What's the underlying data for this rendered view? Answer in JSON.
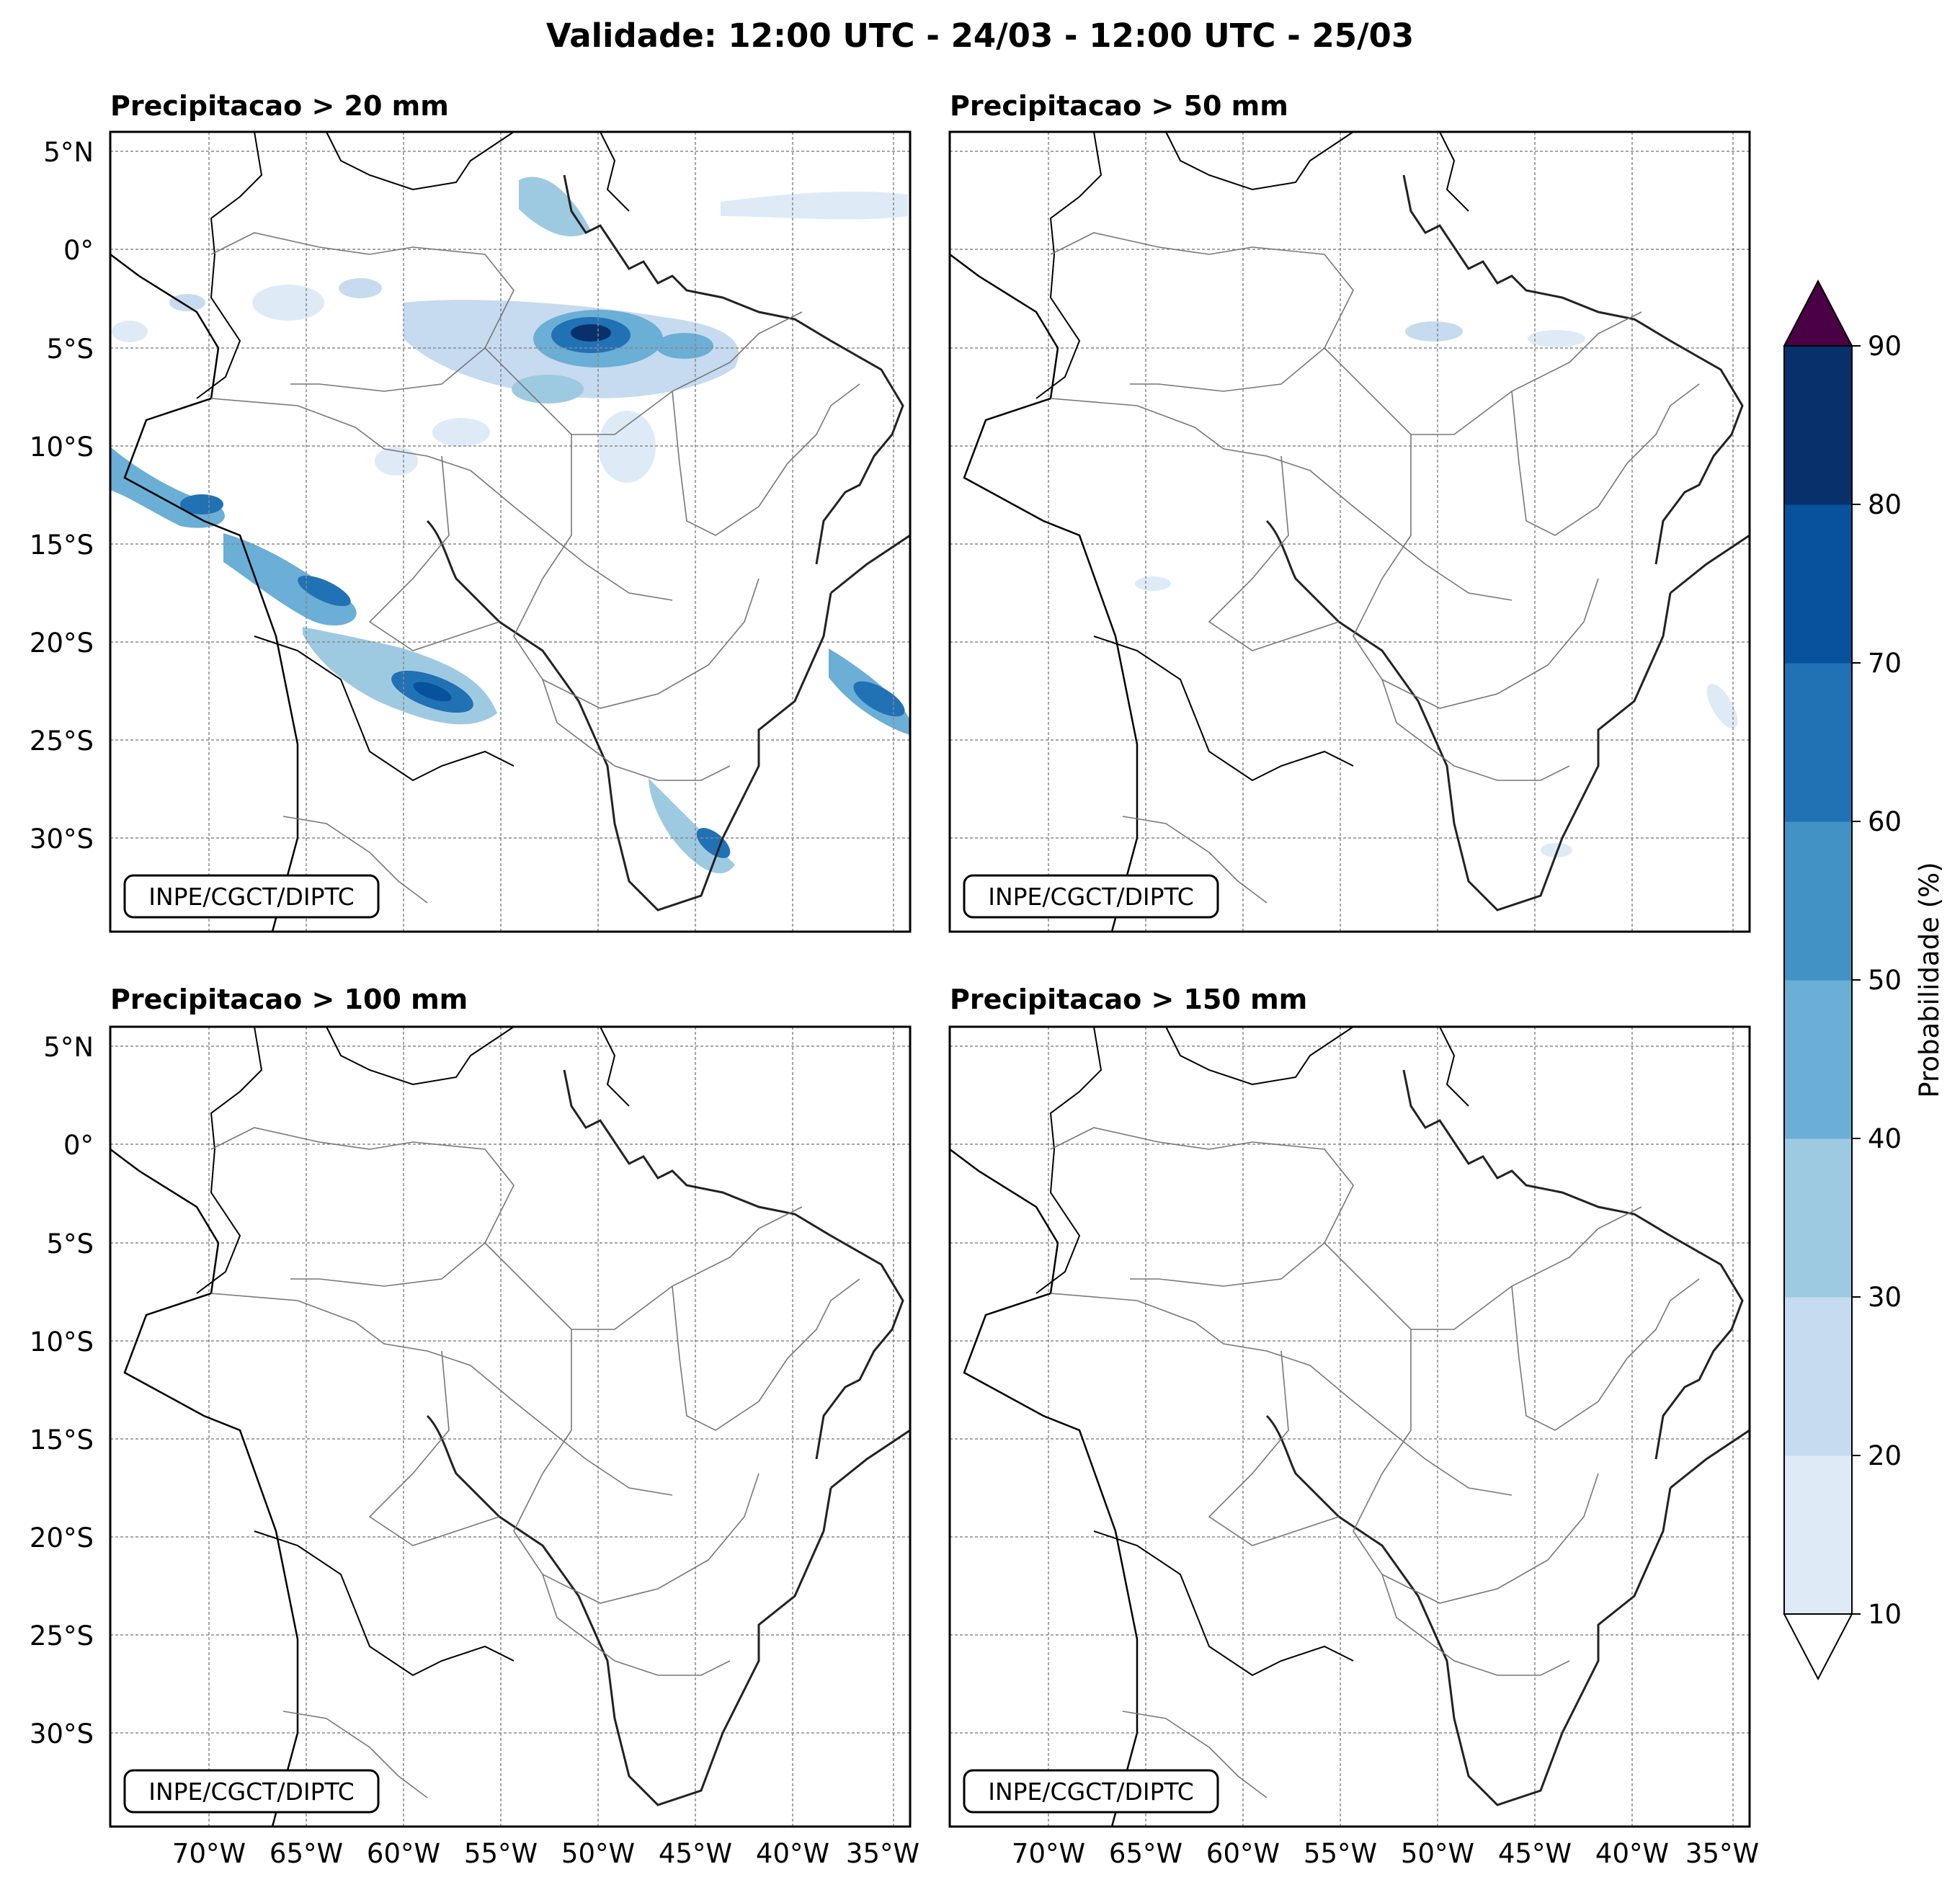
{
  "figure": {
    "title": "Validade: 12:00 UTC - 24/03 - 12:00 UTC - 25/03",
    "credit": "INPE/CGCT/DIPTC"
  },
  "panels": [
    {
      "title": "Precipitacao > 20 mm"
    },
    {
      "title": "Precipitacao > 50 mm"
    },
    {
      "title": "Precipitacao > 100 mm"
    },
    {
      "title": "Precipitacao > 150 mm"
    }
  ],
  "axes": {
    "lat_ticks": [
      "5°N",
      "0°",
      "5°S",
      "10°S",
      "15°S",
      "20°S",
      "25°S",
      "30°S"
    ],
    "lon_ticks": [
      "70°W",
      "65°W",
      "60°W",
      "55°W",
      "50°W",
      "45°W",
      "40°W",
      "35°W"
    ]
  },
  "colorbar": {
    "label": "Probabilidade (%)",
    "ticks": [
      "10",
      "20",
      "30",
      "40",
      "50",
      "60",
      "70",
      "80",
      "90"
    ],
    "colors": [
      "#deebf7",
      "#c6dbef",
      "#9ecae1",
      "#6baed6",
      "#4292c6",
      "#2171b5",
      "#08519c",
      "#08306b"
    ],
    "over_color": "#4a0045",
    "under_color": "#ffffff"
  }
}
